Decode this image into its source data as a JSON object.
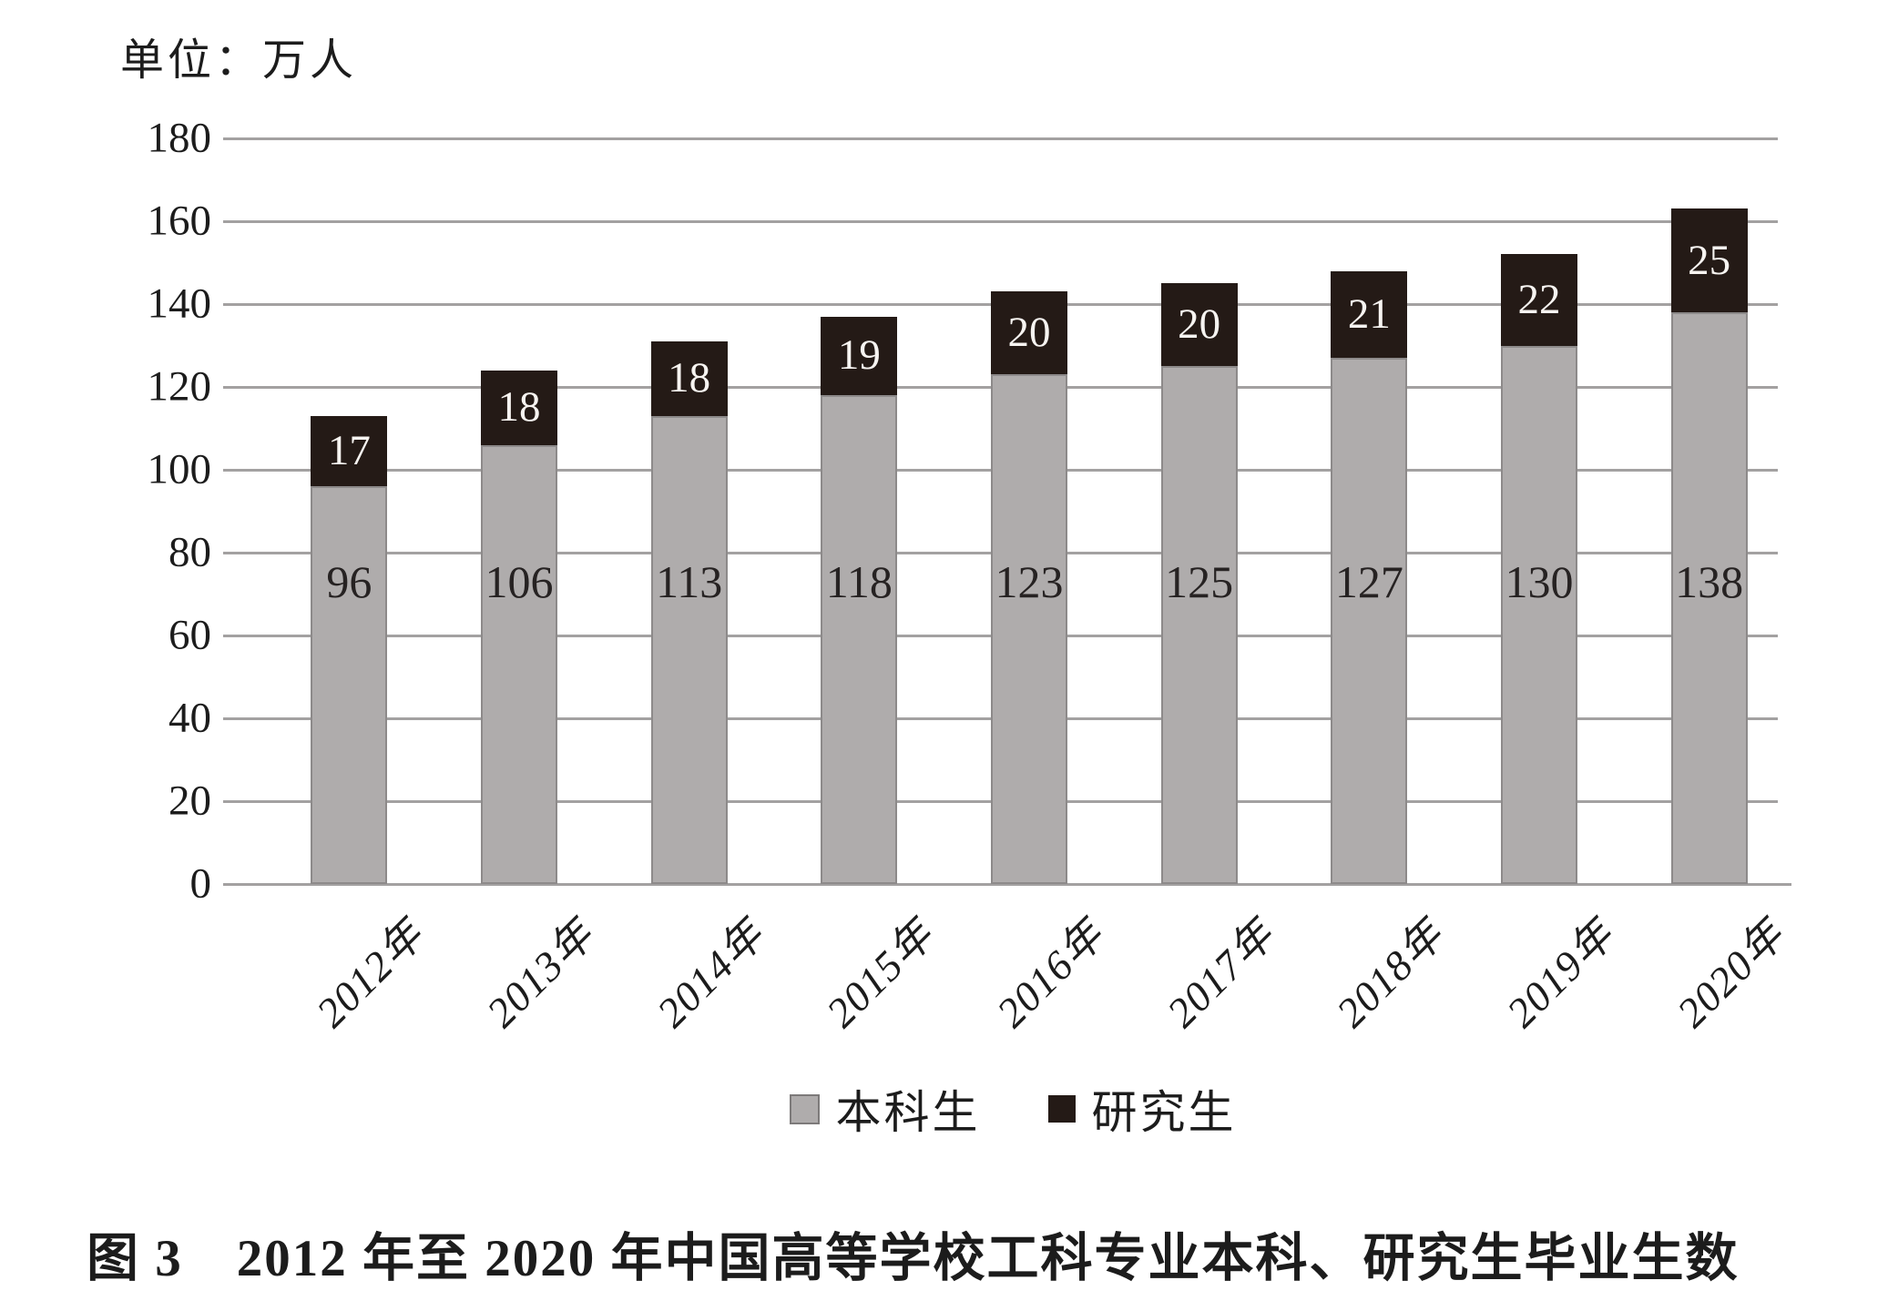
{
  "chart": {
    "unit_label": "单位：万人",
    "y_axis": {
      "min": 0,
      "max": 180,
      "step": 20,
      "tick_labels": [
        "0",
        "20",
        "40",
        "60",
        "80",
        "100",
        "120",
        "140",
        "160",
        "180"
      ]
    }
  },
  "chart_data": {
    "type": "bar",
    "stacked": true,
    "categories": [
      "2012年",
      "2013年",
      "2014年",
      "2015年",
      "2016年",
      "2017年",
      "2018年",
      "2019年",
      "2020年"
    ],
    "series": [
      {
        "name": "本科生",
        "color": "#afacac",
        "values": [
          96,
          106,
          113,
          118,
          123,
          125,
          127,
          130,
          138
        ]
      },
      {
        "name": "研究生",
        "color": "#241a16",
        "values": [
          17,
          18,
          18,
          19,
          20,
          20,
          21,
          22,
          25
        ]
      }
    ],
    "unit": "单位：万人",
    "title": "图 3　2012 年至 2020 年中国高等学校工科专业本科、研究生毕业生数",
    "ylim": [
      0,
      180
    ],
    "grid": true,
    "legend_position": "bottom"
  },
  "legend": {
    "items": [
      {
        "label": "本科生",
        "color": "#afacac",
        "border": "#7d7a7a"
      },
      {
        "label": "研究生",
        "color": "#241a16",
        "border": "#241a16"
      }
    ]
  },
  "caption": "图 3　2012 年至 2020 年中国高等学校工科专业本科、研究生毕业生数"
}
